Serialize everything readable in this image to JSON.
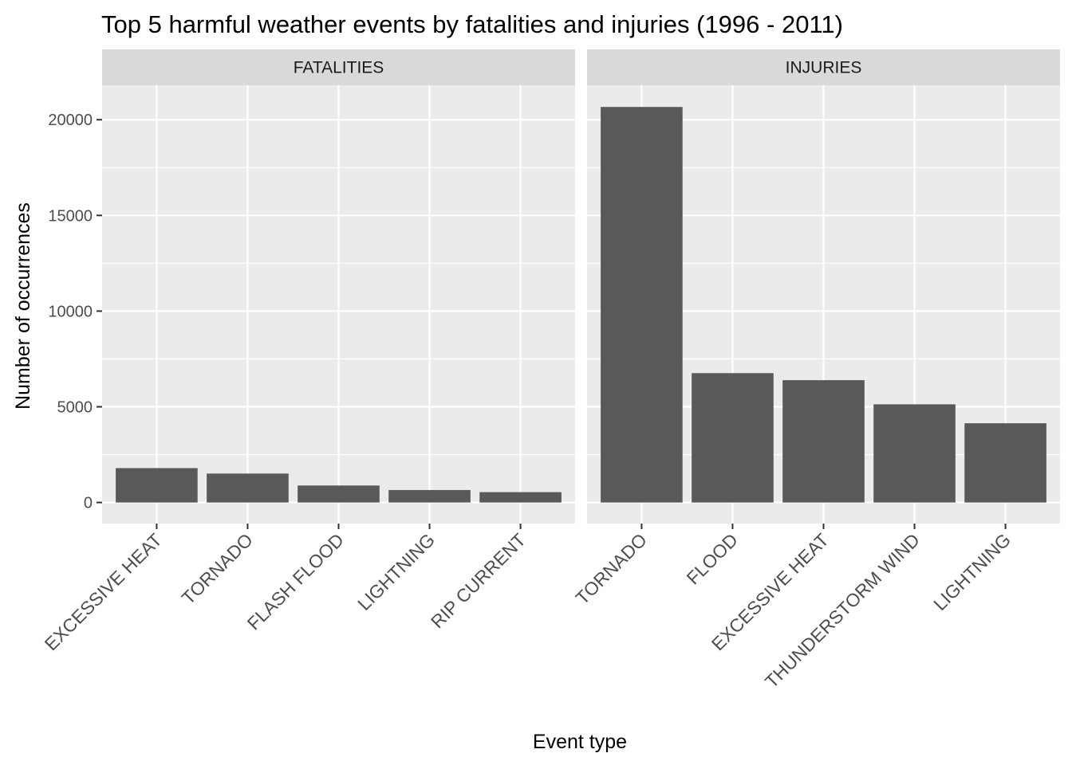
{
  "chart_data": {
    "type": "bar",
    "title": "Top 5 harmful weather events by fatalities and injuries (1996 - 2011)",
    "xlabel": "Event type",
    "ylabel": "Number of occurrences",
    "ylim": [
      -1100,
      21800
    ],
    "yticks": [
      0,
      5000,
      10000,
      15000,
      20000
    ],
    "ytick_labels": [
      "0",
      "5000",
      "10000",
      "15000",
      "20000"
    ],
    "grid": true,
    "bar_color": "#595959",
    "panel_background": "#ebebeb",
    "strip_background": "#d9d9d9",
    "grid_color": "#ffffff",
    "facets": [
      {
        "label": "FATALITIES",
        "categories": [
          "EXCESSIVE HEAT",
          "TORNADO",
          "FLASH FLOOD",
          "LIGHTNING",
          "RIP CURRENT"
        ],
        "values": [
          1797,
          1511,
          887,
          651,
          542
        ]
      },
      {
        "label": "INJURIES",
        "categories": [
          "TORNADO",
          "FLOOD",
          "EXCESSIVE HEAT",
          "THUNDERSTORM WIND",
          "LIGHTNING"
        ],
        "values": [
          20667,
          6758,
          6391,
          5129,
          4141
        ]
      }
    ]
  }
}
